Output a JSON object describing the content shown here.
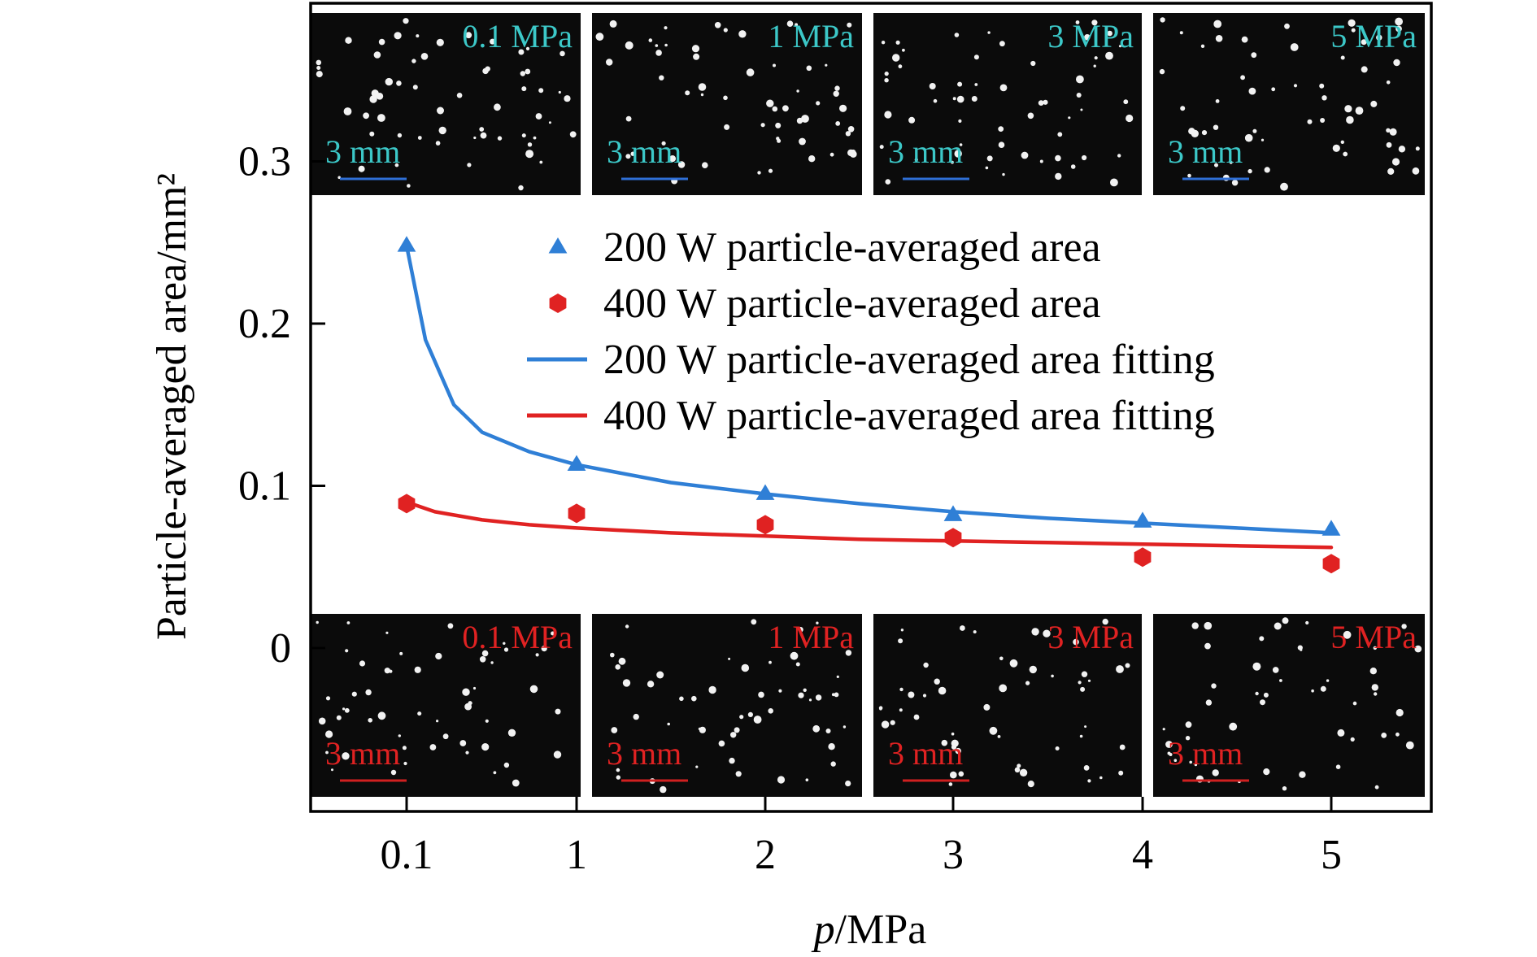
{
  "chart_data": {
    "type": "scatter",
    "xlabel_italic": "p",
    "xlabel_unit": "/MPa",
    "ylabel": "Particle-averaged area/mm²",
    "x_tick_labels": [
      "0.1",
      "1",
      "2",
      "3",
      "4",
      "5"
    ],
    "y_tick_labels": [
      "0",
      "0.1",
      "0.2",
      "0.3"
    ],
    "ylim": [
      0,
      0.3
    ],
    "legend_position": "top-center",
    "series": [
      {
        "name": "200 W particle-averaged area",
        "marker": "triangle",
        "color": "#2f7fd6",
        "x": [
          0.1,
          1,
          2,
          3,
          4,
          5
        ],
        "values": [
          0.248,
          0.113,
          0.095,
          0.082,
          0.078,
          0.073
        ]
      },
      {
        "name": "400 W particle-averaged area",
        "marker": "hexagon",
        "color": "#e02222",
        "x": [
          0.1,
          1,
          2,
          3,
          4,
          5
        ],
        "values": [
          0.089,
          0.083,
          0.076,
          0.068,
          0.056,
          0.052
        ]
      }
    ],
    "fits": [
      {
        "name": "200 W particle-averaged area fitting",
        "color": "#2f7fd6",
        "x": [
          0.1,
          0.2,
          0.35,
          0.5,
          0.75,
          1,
          1.5,
          2,
          2.5,
          3,
          3.5,
          4,
          4.5,
          5
        ],
        "values": [
          0.248,
          0.19,
          0.15,
          0.133,
          0.121,
          0.113,
          0.102,
          0.095,
          0.089,
          0.084,
          0.08,
          0.077,
          0.074,
          0.071
        ]
      },
      {
        "name": "400 W particle-averaged area fitting",
        "color": "#e02222",
        "x": [
          0.1,
          0.25,
          0.5,
          0.75,
          1,
          1.5,
          2,
          2.5,
          3,
          3.5,
          4,
          4.5,
          5
        ],
        "values": [
          0.09,
          0.084,
          0.079,
          0.076,
          0.074,
          0.071,
          0.069,
          0.067,
          0.066,
          0.065,
          0.064,
          0.063,
          0.062
        ]
      }
    ],
    "insets": {
      "top": {
        "label_color": "#3cc8c8",
        "scalebar_color": "#2f6fd6",
        "panels": [
          {
            "pressure": "0.1 MPa",
            "scale": "3 mm"
          },
          {
            "pressure": "1 MPa",
            "scale": "3 mm"
          },
          {
            "pressure": "3 MPa",
            "scale": "3 mm"
          },
          {
            "pressure": "5 MPa",
            "scale": "3 mm"
          }
        ]
      },
      "bottom": {
        "label_color": "#e02222",
        "scalebar_color": "#d02020",
        "panels": [
          {
            "pressure": "0.1 MPa",
            "scale": "3 mm"
          },
          {
            "pressure": "1 MPa",
            "scale": "3 mm"
          },
          {
            "pressure": "3 MPa",
            "scale": "3 mm"
          },
          {
            "pressure": "5 MPa",
            "scale": "3 mm"
          }
        ]
      }
    }
  }
}
